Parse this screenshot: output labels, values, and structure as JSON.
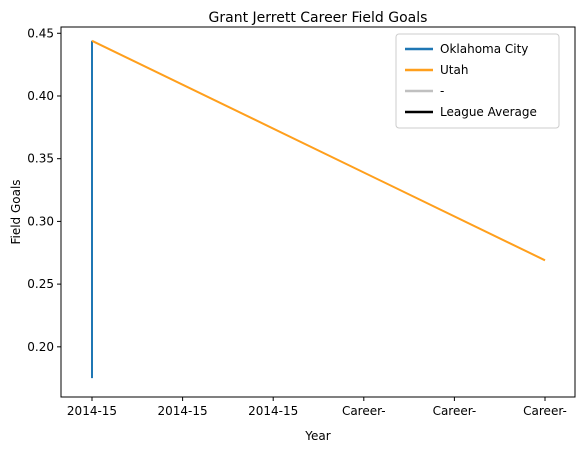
{
  "chart_data": {
    "type": "line",
    "title": "Grant Jerrett Career Field Goals",
    "xlabel": "Year",
    "ylabel": "Field Goals",
    "categories": [
      "2014-15",
      "2014-15",
      "2014-15",
      "Career-",
      "Career-",
      "Career-"
    ],
    "ylim": [
      0.16,
      0.455
    ],
    "yticks": [
      0.2,
      0.25,
      0.3,
      0.35,
      0.4,
      0.45
    ],
    "ytick_labels": [
      "0.20",
      "0.25",
      "0.30",
      "0.35",
      "0.40",
      "0.45"
    ],
    "grid": false,
    "legend_position": "top-right",
    "series": [
      {
        "name": "Oklahoma City",
        "color": "#1f77b4",
        "points": [
          {
            "x": 0,
            "y": 0.175
          },
          {
            "x": 0,
            "y": 0.444
          }
        ]
      },
      {
        "name": "Utah",
        "color": "#ff9f1c",
        "points": [
          {
            "x": 0,
            "y": 0.444
          },
          {
            "x": 5,
            "y": 0.269
          }
        ]
      },
      {
        "name": "-",
        "color": "#c0c0c0",
        "points": []
      },
      {
        "name": "League Average",
        "color": "#000000",
        "points": []
      }
    ]
  }
}
